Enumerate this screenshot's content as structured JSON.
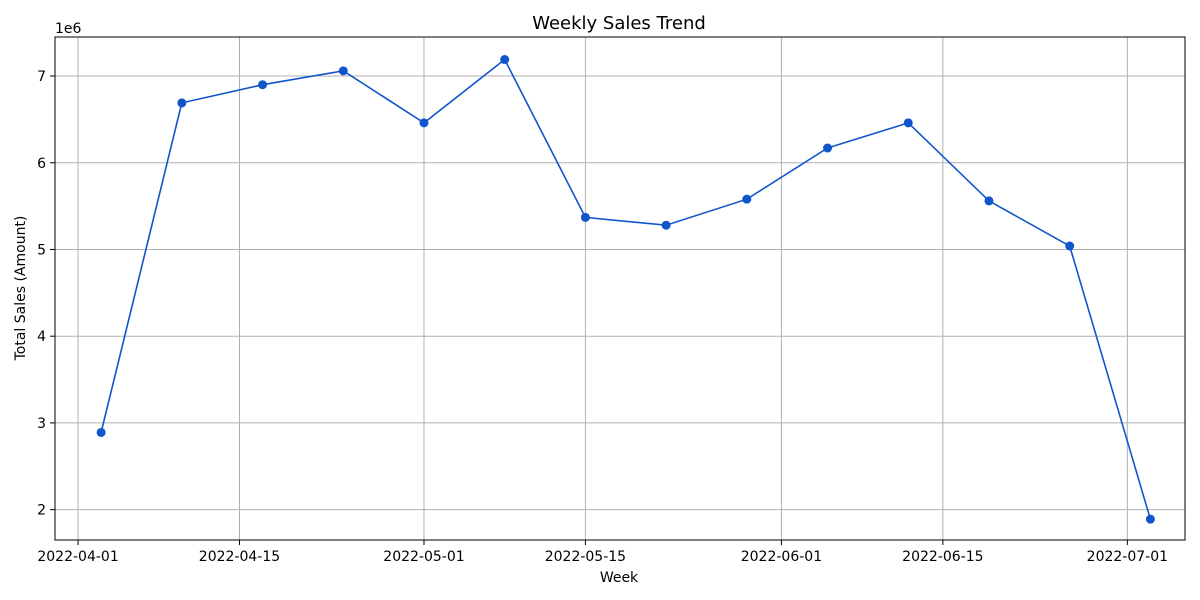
{
  "chart_data": {
    "type": "line",
    "title": "Weekly Sales Trend",
    "xlabel": "Week",
    "ylabel": "Total Sales (Amount)",
    "y_offset_label": "1e6",
    "grid": true,
    "series": [
      {
        "color": "#1155cc",
        "marker": "circle",
        "points": [
          {
            "x": "2022-04-03",
            "y": 2890000
          },
          {
            "x": "2022-04-10",
            "y": 6690000
          },
          {
            "x": "2022-04-17",
            "y": 6900000
          },
          {
            "x": "2022-04-24",
            "y": 7060000
          },
          {
            "x": "2022-05-01",
            "y": 6460000
          },
          {
            "x": "2022-05-08",
            "y": 7190000
          },
          {
            "x": "2022-05-15",
            "y": 5370000
          },
          {
            "x": "2022-05-22",
            "y": 5280000
          },
          {
            "x": "2022-05-29",
            "y": 5580000
          },
          {
            "x": "2022-06-05",
            "y": 6170000
          },
          {
            "x": "2022-06-12",
            "y": 6460000
          },
          {
            "x": "2022-06-19",
            "y": 5560000
          },
          {
            "x": "2022-06-26",
            "y": 5040000
          },
          {
            "x": "2022-07-03",
            "y": 1890000
          }
        ]
      }
    ],
    "xticks": [
      "2022-04-01",
      "2022-04-15",
      "2022-05-01",
      "2022-05-15",
      "2022-06-01",
      "2022-06-15",
      "2022-07-01"
    ],
    "yticks": [
      2,
      3,
      4,
      5,
      6,
      7
    ],
    "xlim": [
      "2022-03-30",
      "2022-07-06"
    ],
    "ylim": [
      1650000,
      7450000
    ]
  }
}
